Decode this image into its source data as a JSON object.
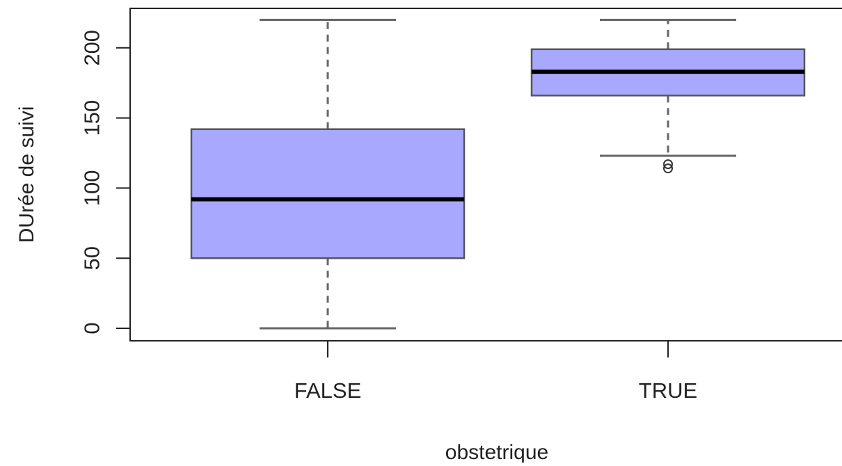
{
  "chart_data": {
    "type": "boxplot",
    "title": "",
    "xlabel": "obstetrique",
    "ylabel": "DUrée de suivi",
    "ylim": [
      -9,
      229
    ],
    "yticks": [
      0,
      50,
      100,
      150,
      200
    ],
    "grid": false,
    "legend": "none",
    "box_color": "#a8a8ff",
    "categories": [
      "FALSE",
      "TRUE"
    ],
    "boxes": [
      {
        "label": "FALSE",
        "whisker_low": 0,
        "q1": 50,
        "median": 92,
        "q3": 142,
        "whisker_high": 220,
        "outliers": []
      },
      {
        "label": "TRUE",
        "whisker_low": 123,
        "q1": 166,
        "median": 183,
        "q3": 199,
        "whisker_high": 220,
        "outliers": [
          114,
          117
        ]
      }
    ]
  }
}
